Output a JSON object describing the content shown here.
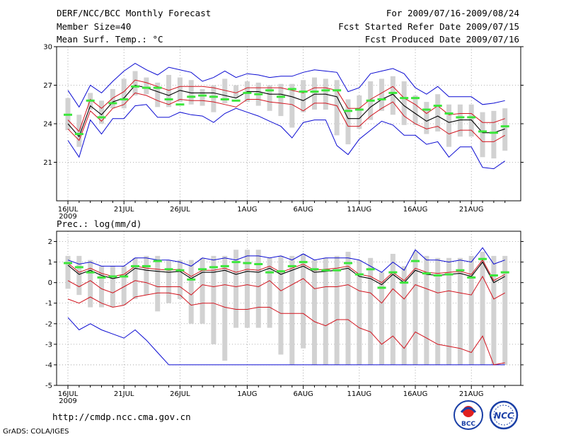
{
  "header": {
    "title": "DERF/NCC/BCC Monthly Forecast",
    "member_size": "Member Size=40",
    "variable": "Mean Surf. Temp.: °C",
    "period": "For 2009/07/16-2009/08/24",
    "refer_date": "Fcst Started Refer Date 2009/07/15",
    "produced_date": "Fcst Produced Date 2009/07/16"
  },
  "footer": {
    "url": "http://cmdp.ncc.cma.gov.cn",
    "credit": "GrADS: COLA/IGES",
    "logo_bcc": "BCC",
    "logo_ncc": "NCC"
  },
  "colors": {
    "mean": "#000000",
    "inner_band": "#d2141e",
    "outer_band": "#0a0ad2",
    "box": "#d2d2d2",
    "obs_marker": "#3ce63c"
  },
  "chart_data": [
    {
      "type": "line",
      "title": "Mean Surf. Temp.: °C",
      "ylim": [
        18,
        30
      ],
      "yticks": [
        "30",
        "27",
        "24",
        "21"
      ],
      "ytick_values": [
        30,
        27,
        24,
        21
      ],
      "xlim": [
        0,
        39.9
      ],
      "xtick_labels": [
        "16JUL",
        "21JUL",
        "26JUL",
        "1AUG",
        "6AUG",
        "11AUG",
        "16AUG",
        "21AUG"
      ],
      "xtick_days": [
        0,
        5,
        10,
        16,
        21,
        26,
        31,
        36
      ],
      "x_year": "2009",
      "grid": true,
      "days": 40,
      "series": [
        {
          "name": "ensemble mean",
          "values": [
            24.0,
            23.0,
            25.4,
            24.7,
            25.7,
            26.0,
            27.0,
            26.8,
            26.5,
            26.2,
            26.6,
            26.4,
            26.4,
            26.4,
            26.2,
            26.0,
            26.5,
            26.5,
            26.3,
            26.3,
            26.1,
            25.8,
            26.3,
            26.3,
            26.1,
            24.4,
            24.4,
            25.3,
            25.9,
            26.3,
            25.4,
            24.8,
            24.2,
            24.6,
            24.1,
            24.3,
            24.3,
            23.3,
            23.3,
            23.6
          ]
        },
        {
          "name": "mean + 1 sd",
          "values": [
            24.3,
            23.4,
            25.9,
            25.2,
            26.0,
            26.5,
            27.4,
            27.2,
            26.9,
            26.6,
            26.9,
            26.9,
            26.9,
            26.8,
            26.6,
            26.4,
            26.8,
            26.8,
            26.8,
            26.8,
            26.6,
            26.4,
            26.8,
            26.8,
            26.6,
            25.2,
            25.2,
            25.9,
            26.4,
            26.9,
            26.0,
            25.5,
            24.8,
            25.4,
            24.7,
            24.8,
            24.8,
            24.1,
            24.1,
            24.4
          ]
        },
        {
          "name": "mean - 1 sd",
          "values": [
            23.6,
            22.7,
            25.0,
            24.2,
            25.2,
            25.5,
            26.4,
            26.2,
            25.8,
            25.5,
            25.9,
            25.8,
            25.8,
            25.7,
            25.5,
            25.3,
            25.9,
            25.9,
            25.7,
            25.6,
            25.5,
            25.0,
            25.6,
            25.6,
            25.4,
            23.8,
            23.8,
            24.6,
            25.2,
            25.7,
            24.6,
            24.0,
            23.6,
            23.8,
            23.2,
            23.5,
            23.5,
            22.6,
            22.6,
            23.1
          ]
        },
        {
          "name": "ensemble max",
          "values": [
            26.6,
            25.3,
            27.0,
            26.4,
            27.3,
            28.1,
            28.7,
            28.2,
            27.8,
            28.4,
            28.2,
            28.0,
            27.3,
            27.6,
            28.1,
            27.6,
            27.9,
            27.8,
            27.6,
            27.7,
            27.7,
            28.0,
            28.2,
            28.1,
            28.0,
            26.5,
            26.8,
            27.9,
            28.1,
            28.3,
            27.9,
            26.8,
            26.3,
            26.9,
            26.1,
            26.1,
            26.1,
            25.5,
            25.6,
            25.8
          ]
        },
        {
          "name": "ensemble min",
          "values": [
            22.7,
            21.4,
            24.3,
            23.2,
            24.4,
            24.4,
            25.4,
            25.5,
            24.5,
            24.5,
            24.9,
            24.7,
            24.6,
            24.1,
            24.8,
            25.2,
            24.9,
            24.6,
            24.2,
            23.8,
            22.9,
            24.1,
            24.3,
            24.3,
            22.3,
            21.6,
            22.8,
            23.5,
            24.2,
            23.9,
            23.1,
            23.1,
            22.4,
            22.6,
            21.4,
            22.2,
            22.2,
            20.6,
            20.5,
            21.1
          ]
        },
        {
          "name": "observed / reference",
          "values": [
            24.7,
            23.2,
            25.8,
            24.5,
            25.6,
            25.9,
            26.9,
            26.8,
            26.8,
            25.9,
            25.5,
            26.1,
            26.2,
            26.1,
            25.9,
            25.8,
            26.4,
            26.3,
            26.6,
            26.1,
            26.7,
            26.5,
            26.5,
            26.6,
            26.6,
            25.0,
            25.1,
            25.8,
            25.9,
            26.4,
            26.0,
            26.0,
            25.1,
            25.4,
            24.8,
            24.5,
            24.5,
            23.4,
            23.3,
            23.8
          ]
        }
      ]
    },
    {
      "type": "line",
      "title": "Prec.: log(mm/d)",
      "ylim": [
        -5,
        2.5
      ],
      "yticks": [
        "2",
        "1",
        "0",
        "-1",
        "-2",
        "-3",
        "-4",
        "-5"
      ],
      "ytick_values": [
        2,
        1,
        0,
        -1,
        -2,
        -3,
        -4,
        -5
      ],
      "xlim": [
        0,
        39.9
      ],
      "xtick_labels": [
        "16JUL",
        "21JUL",
        "26JUL",
        "1AUG",
        "6AUG",
        "11AUG",
        "16AUG",
        "21AUG"
      ],
      "xtick_days": [
        0,
        5,
        10,
        16,
        21,
        26,
        31,
        36
      ],
      "x_year": "2009",
      "grid": true,
      "days": 40,
      "series": [
        {
          "name": "ensemble mean",
          "values": [
            0.85,
            0.4,
            0.6,
            0.35,
            0.2,
            0.3,
            0.7,
            0.6,
            0.55,
            0.5,
            0.55,
            0.2,
            0.5,
            0.5,
            0.6,
            0.4,
            0.55,
            0.5,
            0.7,
            0.4,
            0.6,
            0.8,
            0.5,
            0.55,
            0.6,
            0.7,
            0.3,
            0.2,
            -0.1,
            0.4,
            0.0,
            0.6,
            0.4,
            0.35,
            0.4,
            0.45,
            0.3,
            1.0,
            0.0,
            0.3
          ]
        },
        {
          "name": "mean + 1 sd",
          "values": [
            0.95,
            0.5,
            0.7,
            0.45,
            0.3,
            0.4,
            0.8,
            0.7,
            0.65,
            0.6,
            0.65,
            0.3,
            0.6,
            0.6,
            0.7,
            0.5,
            0.65,
            0.6,
            0.8,
            0.5,
            0.7,
            0.9,
            0.6,
            0.65,
            0.7,
            0.8,
            0.4,
            0.3,
            0.0,
            0.5,
            0.1,
            0.7,
            0.5,
            0.45,
            0.5,
            0.55,
            0.4,
            1.1,
            0.1,
            0.4
          ]
        },
        {
          "name": "mean - 1 sd",
          "values": [
            0.1,
            -0.2,
            0.1,
            -0.3,
            -0.5,
            -0.2,
            0.1,
            0.0,
            -0.2,
            -0.2,
            -0.2,
            -0.6,
            -0.1,
            -0.2,
            -0.1,
            -0.2,
            -0.1,
            -0.2,
            0.1,
            -0.4,
            -0.1,
            0.2,
            -0.3,
            -0.2,
            -0.2,
            -0.1,
            -0.4,
            -0.5,
            -1.0,
            -0.3,
            -0.8,
            -0.1,
            -0.3,
            -0.5,
            -0.4,
            -0.5,
            -0.6,
            0.3,
            -0.8,
            -0.5
          ]
        },
        {
          "name": "mean - 2 sd",
          "values": [
            -0.8,
            -1.0,
            -0.7,
            -1.0,
            -1.2,
            -1.1,
            -0.7,
            -0.6,
            -0.5,
            -0.5,
            -0.6,
            -1.1,
            -1.0,
            -1.0,
            -1.2,
            -1.3,
            -1.3,
            -1.2,
            -1.2,
            -1.5,
            -1.5,
            -1.5,
            -1.9,
            -2.1,
            -1.8,
            -1.8,
            -2.2,
            -2.4,
            -3.0,
            -2.6,
            -3.2,
            -2.4,
            -2.7,
            -3.0,
            -3.1,
            -3.2,
            -3.4,
            -2.6,
            -4.0,
            -3.9
          ]
        },
        {
          "name": "ensemble max",
          "values": [
            1.1,
            0.9,
            1.0,
            0.8,
            0.8,
            0.8,
            1.2,
            1.2,
            1.1,
            1.1,
            1.0,
            0.8,
            1.2,
            1.1,
            1.2,
            1.1,
            1.3,
            1.3,
            1.2,
            1.3,
            1.1,
            1.4,
            1.1,
            1.2,
            1.2,
            1.2,
            1.1,
            0.8,
            0.5,
            1.0,
            0.6,
            1.6,
            1.1,
            1.1,
            1.0,
            1.1,
            1.0,
            1.7,
            0.9,
            1.1
          ]
        },
        {
          "name": "ensemble min",
          "values": [
            -1.7,
            -2.3,
            -2.0,
            -2.3,
            -2.5,
            -2.7,
            -2.3,
            -2.8,
            -3.4,
            -4.0,
            -4.0,
            -4.0,
            -4.0,
            -4.0,
            -4.0,
            -4.0,
            -4.0,
            -4.0,
            -4.0,
            -4.0,
            -4.0,
            -4.0,
            -4.0,
            -4.0,
            -4.0,
            -4.0,
            -4.0,
            -4.0,
            -4.0,
            -4.0,
            -4.0,
            -4.0,
            -4.0,
            -4.0,
            -4.0,
            -4.0,
            -4.0,
            -4.0,
            -4.0,
            -4.0
          ]
        },
        {
          "name": "observed / reference",
          "values": [
            0.95,
            0.75,
            0.5,
            0.25,
            0.3,
            0.3,
            0.8,
            0.8,
            1.05,
            0.65,
            0.6,
            0.15,
            0.65,
            0.75,
            0.8,
            1.0,
            0.95,
            0.9,
            0.5,
            0.55,
            0.8,
            1.0,
            0.65,
            0.6,
            0.6,
            0.95,
            0.4,
            0.65,
            -0.25,
            0.5,
            0.0,
            1.05,
            0.45,
            0.35,
            0.4,
            0.6,
            0.25,
            1.15,
            0.35,
            0.5
          ]
        },
        {
          "name": "box top",
          "values": [
            1.3,
            1.3,
            1.1,
            0.8,
            0.8,
            0.8,
            1.2,
            1.3,
            1.3,
            1.1,
            1.1,
            1.1,
            1.2,
            1.3,
            1.3,
            1.6,
            1.6,
            1.6,
            1.2,
            1.3,
            1.3,
            1.4,
            1.1,
            1.2,
            1.3,
            1.5,
            1.1,
            1.2,
            0.5,
            1.4,
            0.8,
            1.5,
            1.3,
            1.2,
            1.2,
            1.2,
            1.3,
            1.5,
            1.3,
            1.3
          ]
        },
        {
          "name": "box bottom",
          "values": [
            -0.3,
            -0.6,
            -1.2,
            -1.2,
            -1.2,
            -1.1,
            -0.8,
            -0.6,
            -1.4,
            -1.0,
            -0.8,
            -2.0,
            -2.0,
            -3.0,
            -3.8,
            -2.2,
            -2.2,
            -2.2,
            -2.2,
            -3.5,
            -4.0,
            -3.2,
            -4.0,
            -4.0,
            -4.0,
            -4.0,
            -4.0,
            -4.0,
            -4.0,
            -4.0,
            -4.0,
            -4.0,
            -4.0,
            -4.0,
            -4.0,
            -4.0,
            -4.0,
            -4.0,
            -4.0,
            -4.0
          ]
        }
      ]
    }
  ]
}
